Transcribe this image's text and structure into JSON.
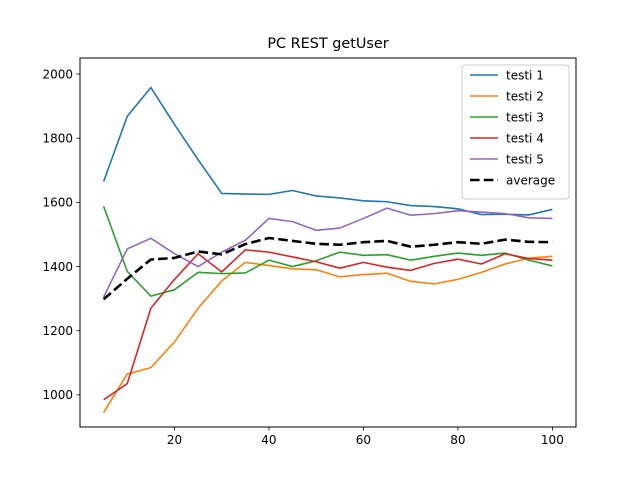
{
  "chart_data": {
    "type": "line",
    "title": "PC REST getUser",
    "xlabel": "",
    "ylabel": "",
    "xlim": [
      0,
      105
    ],
    "ylim": [
      900,
      2050
    ],
    "x": [
      5,
      10,
      15,
      20,
      25,
      30,
      35,
      40,
      45,
      50,
      55,
      60,
      65,
      70,
      75,
      80,
      85,
      90,
      95,
      100
    ],
    "xticks": [
      20,
      40,
      60,
      80,
      100
    ],
    "yticks": [
      1000,
      1200,
      1400,
      1600,
      1800,
      2000
    ],
    "legend_position": "top-right",
    "grid": false,
    "series": [
      {
        "name": "testi 1",
        "color": "#1f77b4",
        "style": "solid",
        "values": [
          1665,
          1868,
          1958,
          1843,
          1733,
          1628,
          1626,
          1625,
          1637,
          1620,
          1614,
          1605,
          1602,
          1590,
          1587,
          1580,
          1562,
          1563,
          1561,
          1578
        ]
      },
      {
        "name": "testi 2",
        "color": "#ff7f0e",
        "style": "solid",
        "values": [
          945,
          1065,
          1085,
          1165,
          1270,
          1355,
          1413,
          1403,
          1393,
          1390,
          1368,
          1375,
          1379,
          1354,
          1346,
          1360,
          1382,
          1408,
          1426,
          1432
        ]
      },
      {
        "name": "testi 3",
        "color": "#2ca02c",
        "style": "solid",
        "values": [
          1588,
          1385,
          1308,
          1328,
          1382,
          1378,
          1380,
          1420,
          1400,
          1418,
          1445,
          1435,
          1437,
          1420,
          1432,
          1442,
          1435,
          1442,
          1420,
          1402
        ]
      },
      {
        "name": "testi 4",
        "color": "#d62728",
        "style": "solid",
        "values": [
          985,
          1035,
          1270,
          1360,
          1440,
          1383,
          1452,
          1445,
          1430,
          1415,
          1395,
          1413,
          1398,
          1388,
          1410,
          1423,
          1408,
          1440,
          1425,
          1420
        ]
      },
      {
        "name": "testi 5",
        "color": "#9467bd",
        "style": "solid",
        "values": [
          1305,
          1455,
          1488,
          1440,
          1400,
          1445,
          1482,
          1550,
          1540,
          1513,
          1520,
          1550,
          1582,
          1560,
          1565,
          1574,
          1570,
          1565,
          1552,
          1550
        ]
      },
      {
        "name": "average",
        "color": "#000000",
        "style": "dashed",
        "values": [
          1298,
          1362,
          1422,
          1427,
          1447,
          1438,
          1470,
          1489,
          1480,
          1471,
          1468,
          1476,
          1480,
          1462,
          1468,
          1476,
          1471,
          1484,
          1477,
          1476
        ]
      }
    ]
  }
}
